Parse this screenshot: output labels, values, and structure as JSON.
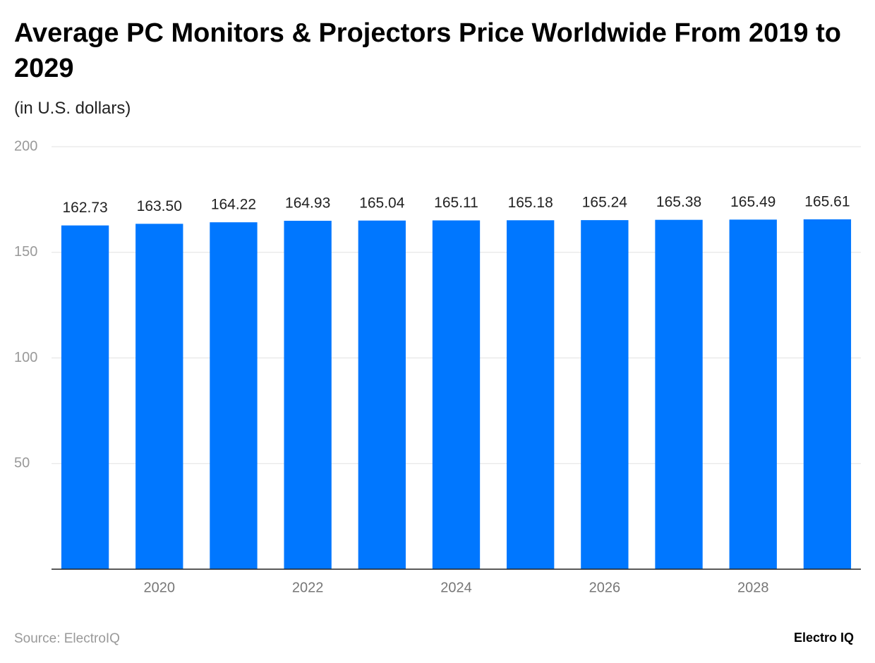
{
  "chart_data": {
    "type": "bar",
    "title": "Average PC Monitors & Projectors Price Worldwide From 2019 to 2029",
    "subtitle": "(in U.S. dollars)",
    "source": "Source: ElectroIQ",
    "brand": "Electro IQ",
    "categories": [
      null,
      "2020",
      null,
      "2022",
      null,
      "2024",
      null,
      "2026",
      null,
      "2028",
      null
    ],
    "values": [
      162.73,
      163.5,
      164.22,
      164.93,
      165.04,
      165.11,
      165.18,
      165.24,
      165.38,
      165.49,
      165.61
    ],
    "value_labels": [
      "162.73",
      "163.50",
      "164.22",
      "164.93",
      "165.04",
      "165.11",
      "165.18",
      "165.24",
      "165.38",
      "165.49",
      "165.61"
    ],
    "color": "#0077ff",
    "ylim": [
      0,
      200
    ],
    "yticks": [
      50,
      100,
      150,
      200
    ],
    "grid": true
  }
}
